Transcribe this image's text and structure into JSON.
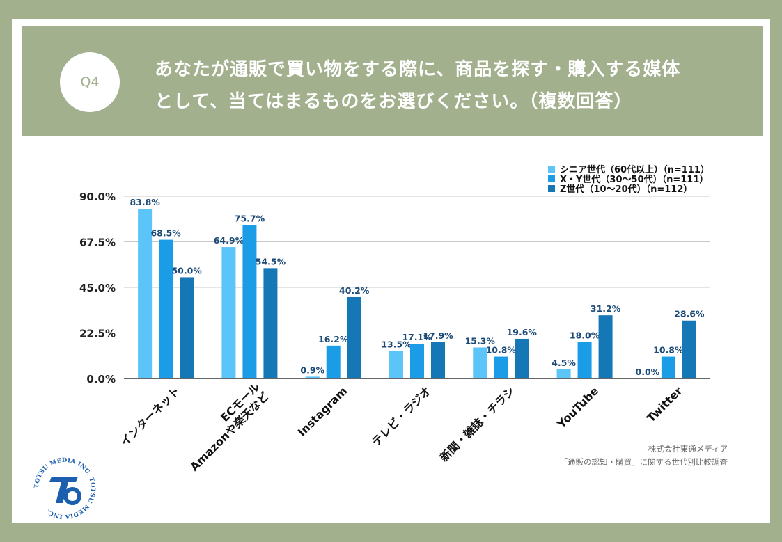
{
  "question": {
    "label": "Q4",
    "line1": "あなたが通販で買い物をする際に、商品を探す・購入する媒体",
    "line2": "として、当てはまるものをお選びください。（複数回答）"
  },
  "credit": {
    "company": "株式会社東通メディア",
    "survey": "「通販の認知・購買」に関する世代別比較調査"
  },
  "logo": {
    "text": "TOTSU MEDIA INC. TOTSU MEDIA INC."
  },
  "colors": {
    "background": "#a2b08e",
    "series": [
      "#5bc4f8",
      "#1a9ce6",
      "#1577b5"
    ],
    "label": "#1c4a78"
  },
  "chart_data": {
    "type": "bar",
    "categories": [
      "インターネット",
      "ECモール\nAmazonや楽天など",
      "Instagram",
      "テレビ・ラジオ",
      "新聞・雑誌・チラシ",
      "YouTube",
      "Twitter"
    ],
    "series": [
      {
        "name": "シニア世代（60代以上）（n=111）",
        "values": [
          83.8,
          64.9,
          0.9,
          13.5,
          15.3,
          4.5,
          0.0
        ]
      },
      {
        "name": "X・Y世代（30〜50代）（n=111）",
        "values": [
          68.5,
          75.7,
          16.2,
          17.1,
          10.8,
          18.0,
          10.8
        ]
      },
      {
        "name": "Z世代（10〜20代）（n=112）",
        "values": [
          50.0,
          54.5,
          40.2,
          17.9,
          19.6,
          31.2,
          28.6
        ]
      }
    ],
    "value_labels": [
      [
        "83.8%",
        "64.9%",
        "0.9%",
        "13.5%",
        "15.3%",
        "4.5%",
        "0.0%"
      ],
      [
        "68.5%",
        "75.7%",
        "16.2%",
        "17.1%",
        "10.8%",
        "18.0%",
        "10.8%"
      ],
      [
        "50.0%",
        "54.5%",
        "40.2%",
        "17.9%",
        "19.6%",
        "31.2%",
        "28.6%"
      ]
    ],
    "yticks": [
      0,
      22.5,
      45,
      67.5,
      90
    ],
    "ytick_labels": [
      "0.0%",
      "22.5%",
      "45.0%",
      "67.5%",
      "90.0%"
    ],
    "ylim": [
      0,
      90
    ],
    "grid": true,
    "legend": "top-right",
    "title": "",
    "xlabel": "",
    "ylabel": ""
  }
}
